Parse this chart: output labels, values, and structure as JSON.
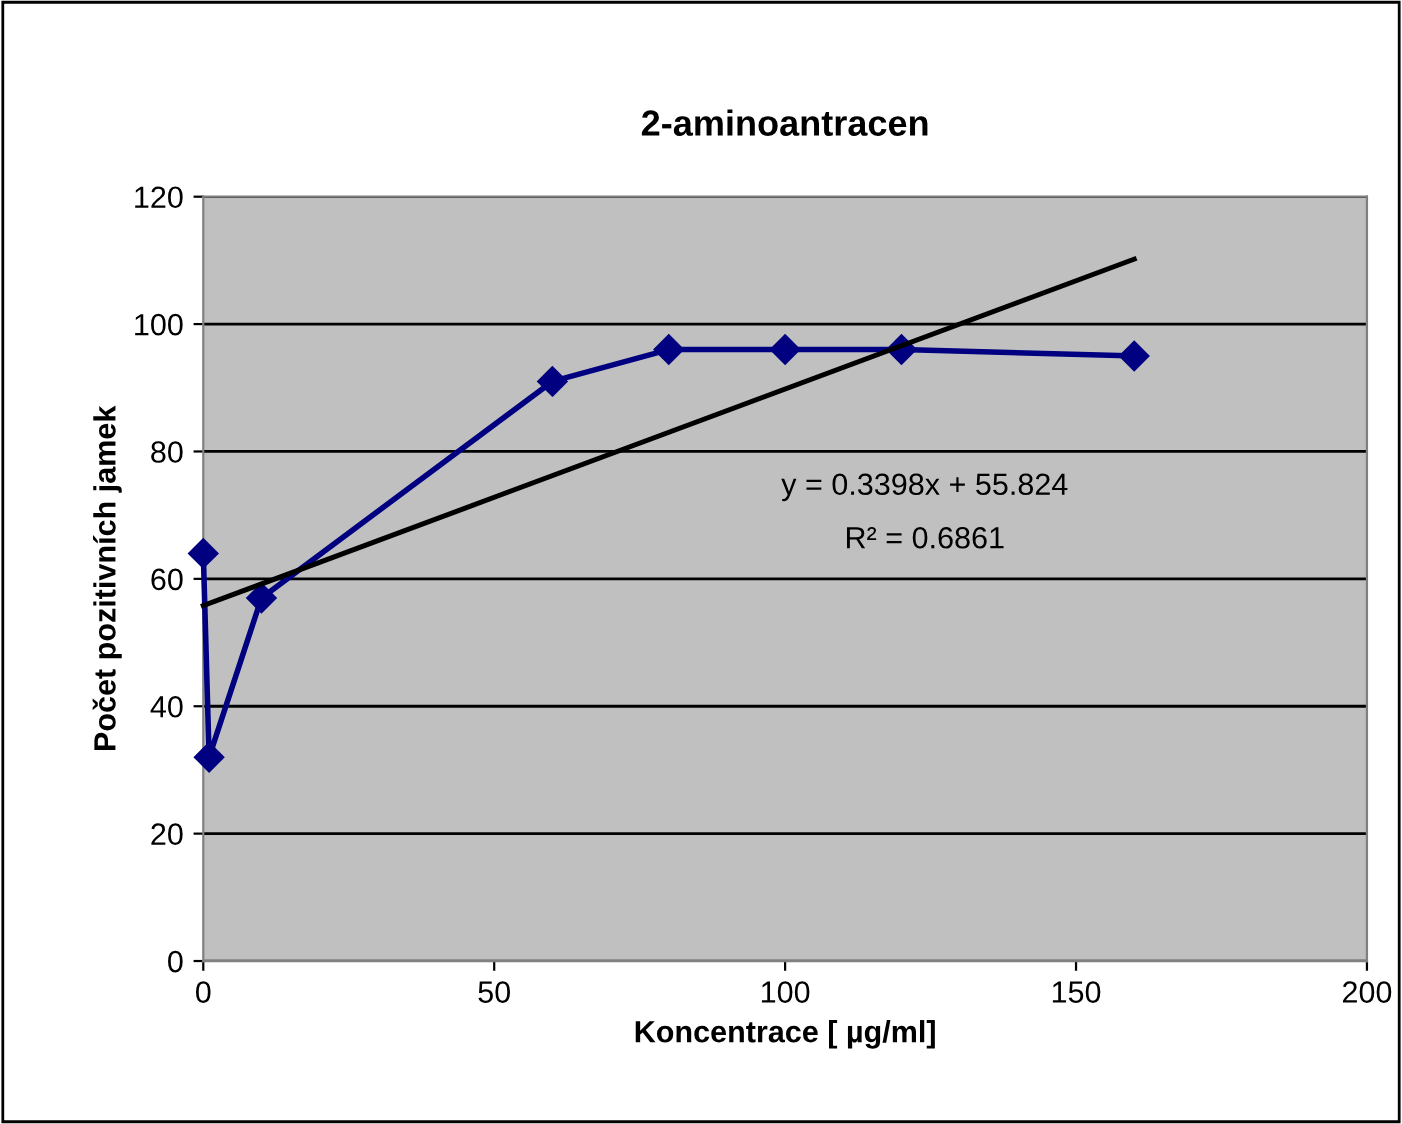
{
  "chart_data": {
    "type": "line",
    "title": "2-aminoantracen",
    "xlabel": "Koncentrace [ µg/ml]",
    "ylabel": "Počet pozitivních jamek",
    "x": [
      0,
      1,
      10,
      60,
      80,
      100,
      120,
      160
    ],
    "series": [
      {
        "color": "#000080",
        "marker": "diamond",
        "values": [
          64,
          32,
          57,
          91,
          96,
          96,
          96,
          95
        ]
      },
      {
        "color": "#000000",
        "marker": "none",
        "x": [
          0,
          160
        ],
        "values": [
          55.8,
          110.2
        ]
      }
    ],
    "xlim": [
      0,
      200
    ],
    "xticks": [
      0,
      50,
      100,
      150,
      200
    ],
    "ylim": [
      0,
      120
    ],
    "yticks": [
      0,
      20,
      40,
      60,
      80,
      100,
      120
    ],
    "grid": "y",
    "legend": false,
    "annotations": [
      "y = 0.3398x + 55.824",
      "R² = 0.6861"
    ]
  }
}
